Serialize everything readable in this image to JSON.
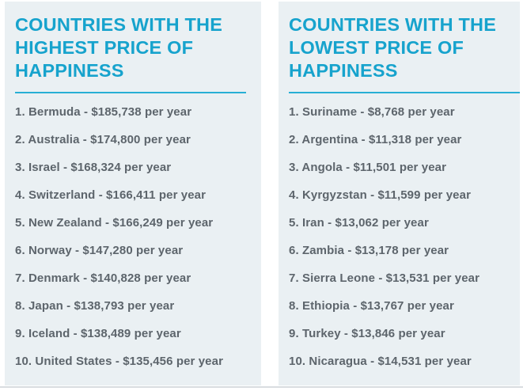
{
  "theme": {
    "accent": "#17a3cd",
    "divider": "#28afd5",
    "panel_bg": "#eaf0f3",
    "text_gray": "#5d656c",
    "bottom_border": "#d9dde0"
  },
  "panels": [
    {
      "id": "highest",
      "title": "COUNTRIES WITH THE\nHIGHEST PRICE OF\nHAPPINESS",
      "items": [
        "1. Bermuda - $185,738 per year",
        "2. Australia - $174,800 per year",
        "3. Israel - $168,324 per year",
        "4. Switzerland - $166,411 per year",
        "5. New Zealand - $166,249 per year",
        "6. Norway - $147,280 per year",
        "7. Denmark - $140,828 per year",
        "8. Japan - $138,793 per year",
        "9. Iceland - $138,489 per year",
        "10. United States - $135,456 per year"
      ]
    },
    {
      "id": "lowest",
      "title": "COUNTRIES WITH THE\nLOWEST PRICE OF\nHAPPINESS",
      "items": [
        "1. Suriname - $8,768 per year",
        "2. Argentina - $11,318 per year",
        "3. Angola - $11,501 per year",
        "4. Kyrgyzstan - $11,599 per year",
        "5. Iran - $13,062 per year",
        "6. Zambia - $13,178 per year",
        "7. Sierra Leone - $13,531 per year",
        "8. Ethiopia - $13,767 per year",
        "9. Turkey - $13,846 per year",
        "10. Nicaragua - $14,531 per year"
      ]
    }
  ],
  "chart_data": [
    {
      "type": "table",
      "title": "COUNTRIES WITH THE HIGHEST PRICE OF HAPPINESS",
      "columns": [
        "rank",
        "country",
        "price_of_happiness_usd_per_year"
      ],
      "rows": [
        [
          1,
          "Bermuda",
          185738
        ],
        [
          2,
          "Australia",
          174800
        ],
        [
          3,
          "Israel",
          168324
        ],
        [
          4,
          "Switzerland",
          166411
        ],
        [
          5,
          "New Zealand",
          166249
        ],
        [
          6,
          "Norway",
          147280
        ],
        [
          7,
          "Denmark",
          140828
        ],
        [
          8,
          "Japan",
          138793
        ],
        [
          9,
          "Iceland",
          138489
        ],
        [
          10,
          "United States",
          135456
        ]
      ]
    },
    {
      "type": "table",
      "title": "COUNTRIES WITH THE LOWEST PRICE OF HAPPINESS",
      "columns": [
        "rank",
        "country",
        "price_of_happiness_usd_per_year"
      ],
      "rows": [
        [
          1,
          "Suriname",
          8768
        ],
        [
          2,
          "Argentina",
          11318
        ],
        [
          3,
          "Angola",
          11501
        ],
        [
          4,
          "Kyrgyzstan",
          11599
        ],
        [
          5,
          "Iran",
          13062
        ],
        [
          6,
          "Zambia",
          13178
        ],
        [
          7,
          "Sierra Leone",
          13531
        ],
        [
          8,
          "Ethiopia",
          13767
        ],
        [
          9,
          "Turkey",
          13846
        ],
        [
          10,
          "Nicaragua",
          14531
        ]
      ]
    }
  ]
}
